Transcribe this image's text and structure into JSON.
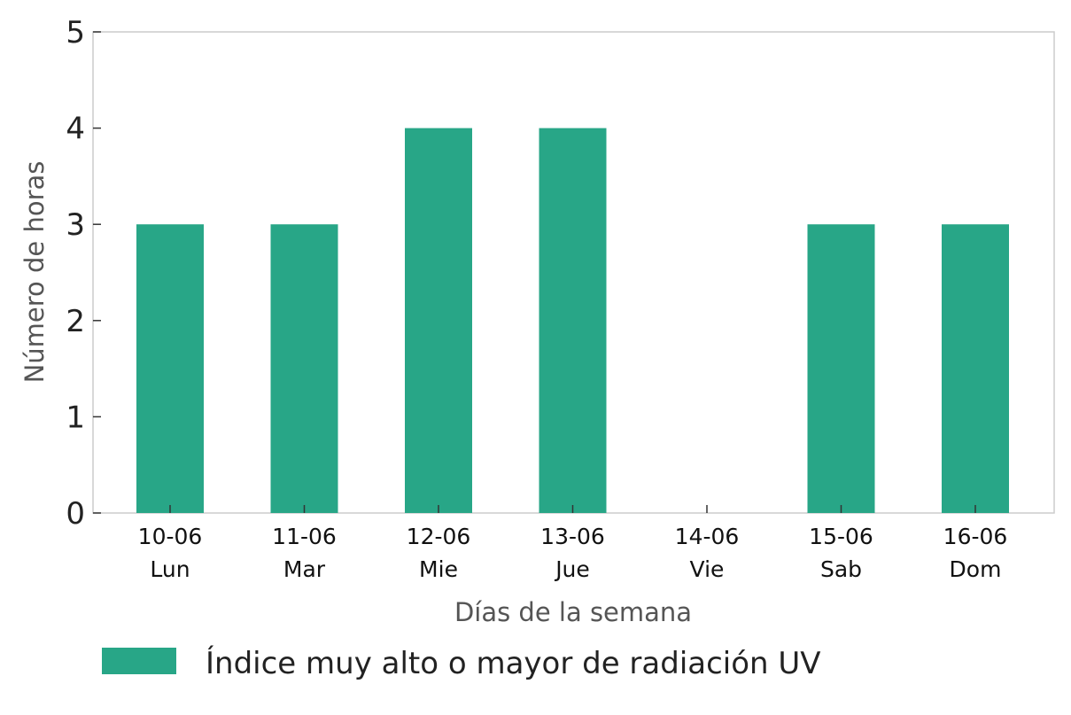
{
  "chart_data": {
    "type": "bar",
    "title": "",
    "xlabel": "Días de la semana",
    "ylabel": "Número de horas",
    "ylim": [
      0,
      5
    ],
    "yticks": [
      "0",
      "1",
      "2",
      "3",
      "4",
      "5"
    ],
    "categories": [
      {
        "date": "10-06",
        "day": "Lun"
      },
      {
        "date": "11-06",
        "day": "Mar"
      },
      {
        "date": "12-06",
        "day": "Mie"
      },
      {
        "date": "13-06",
        "day": "Jue"
      },
      {
        "date": "14-06",
        "day": "Vie"
      },
      {
        "date": "15-06",
        "day": "Sab"
      },
      {
        "date": "16-06",
        "day": "Dom"
      }
    ],
    "series": [
      {
        "name": "Índice muy alto o mayor de radiación UV",
        "color": "#28a687",
        "values": [
          3,
          3,
          4,
          4,
          0,
          3,
          3
        ]
      }
    ],
    "grid": false,
    "legend_position": "bottom"
  }
}
